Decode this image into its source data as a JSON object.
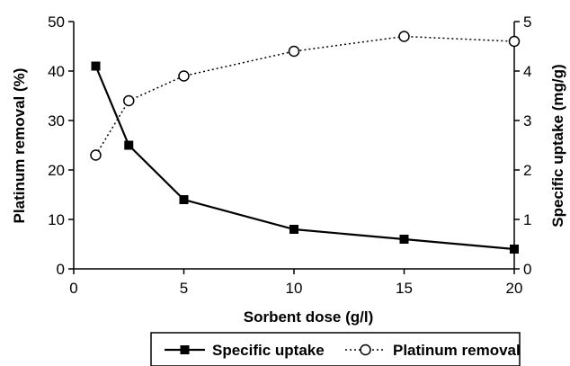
{
  "chart_data": {
    "type": "line",
    "xlabel": "Sorbent dose (g/l)",
    "ylabel_left": "Platinum removal (%)",
    "ylabel_right": "Specific uptake (mg/g)",
    "xlim": [
      0,
      20
    ],
    "ylim_left": [
      0,
      50
    ],
    "ylim_right": [
      0,
      5
    ],
    "x_ticks": [
      "0",
      "5",
      "10",
      "15",
      "20"
    ],
    "y_left_ticks": [
      "0",
      "10",
      "20",
      "30",
      "40",
      "50"
    ],
    "y_right_ticks": [
      "0",
      "1",
      "2",
      "3",
      "4",
      "5"
    ],
    "grid": false,
    "legend_position": "bottom",
    "series": [
      {
        "name": "Specific uptake",
        "axis": "right",
        "marker": "filled-square",
        "line_style": "solid",
        "color": "#000000",
        "x": [
          1,
          2.5,
          5,
          10,
          15,
          20
        ],
        "y": [
          4.1,
          2.5,
          1.4,
          0.8,
          0.6,
          0.4
        ]
      },
      {
        "name": "Platinum removal",
        "axis": "left",
        "marker": "open-circle",
        "line_style": "dotted",
        "color": "#000000",
        "x": [
          1,
          2.5,
          5,
          10,
          15,
          20
        ],
        "y": [
          23,
          34,
          39,
          44,
          47,
          46
        ]
      }
    ]
  }
}
